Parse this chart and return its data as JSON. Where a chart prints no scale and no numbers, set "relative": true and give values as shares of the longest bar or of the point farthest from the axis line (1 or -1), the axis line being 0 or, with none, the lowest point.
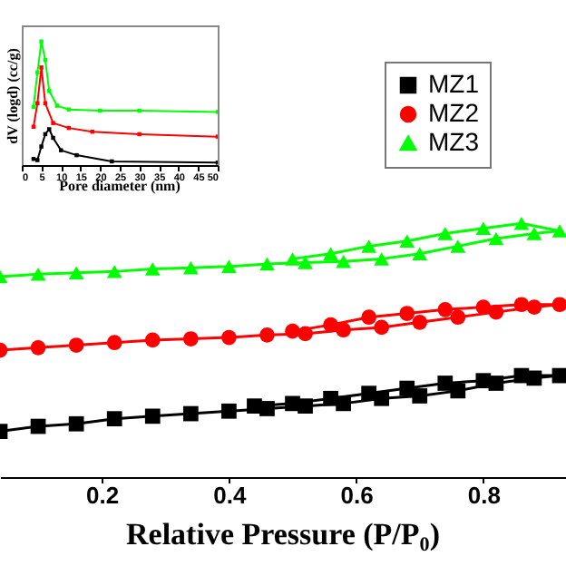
{
  "chart_data": [
    {
      "type": "line",
      "xlabel": "Relative Pressure (P/P$_{0}$)",
      "relative": true,
      "xlim": [
        0.04,
        0.93
      ],
      "xticks": [
        0.2,
        0.4,
        0.6,
        0.8
      ],
      "tick_labels": "x",
      "legend": "top right",
      "line_style": "solid",
      "series": [
        {
          "name": "MZ1",
          "color": "#000000",
          "marker": "square",
          "x": [
            0.04,
            0.1,
            0.16,
            0.22,
            0.28,
            0.34,
            0.4,
            0.46,
            0.52,
            0.58,
            0.64,
            0.7,
            0.76,
            0.82,
            0.88,
            0.92,
            0.86,
            0.8,
            0.74,
            0.68,
            0.62,
            0.56,
            0.5,
            0.44
          ],
          "values": [
            0.18,
            0.2,
            0.21,
            0.23,
            0.24,
            0.25,
            0.26,
            0.27,
            0.28,
            0.29,
            0.31,
            0.32,
            0.34,
            0.37,
            0.39,
            0.4,
            0.4,
            0.38,
            0.37,
            0.35,
            0.33,
            0.31,
            0.29,
            0.28
          ]
        },
        {
          "name": "MZ2",
          "color": "#ff0000",
          "marker": "circle",
          "x": [
            0.04,
            0.1,
            0.16,
            0.22,
            0.28,
            0.34,
            0.4,
            0.46,
            0.52,
            0.58,
            0.64,
            0.7,
            0.76,
            0.82,
            0.88,
            0.92,
            0.86,
            0.8,
            0.74,
            0.68,
            0.62,
            0.56,
            0.5
          ],
          "values": [
            0.5,
            0.51,
            0.52,
            0.53,
            0.54,
            0.545,
            0.55,
            0.56,
            0.565,
            0.58,
            0.59,
            0.61,
            0.63,
            0.65,
            0.67,
            0.68,
            0.68,
            0.67,
            0.66,
            0.645,
            0.63,
            0.6,
            0.575
          ]
        },
        {
          "name": "MZ3",
          "color": "#00ff00",
          "marker": "triangle",
          "x": [
            0.04,
            0.1,
            0.16,
            0.22,
            0.28,
            0.34,
            0.4,
            0.46,
            0.52,
            0.58,
            0.64,
            0.7,
            0.76,
            0.82,
            0.88,
            0.92,
            0.86,
            0.8,
            0.74,
            0.68,
            0.62,
            0.56,
            0.5
          ],
          "values": [
            0.79,
            0.8,
            0.805,
            0.81,
            0.82,
            0.825,
            0.83,
            0.84,
            0.845,
            0.85,
            0.86,
            0.88,
            0.91,
            0.94,
            0.96,
            0.97,
            1.0,
            0.98,
            0.96,
            0.93,
            0.91,
            0.88,
            0.86
          ]
        }
      ]
    },
    {
      "type": "line",
      "xlabel": "Pore diameter (nm)",
      "ylabel": "dV (logd) (cc/g)",
      "relative": true,
      "xlim": [
        0,
        50
      ],
      "xticks": [
        0,
        5,
        10,
        15,
        20,
        25,
        30,
        35,
        40,
        45,
        50
      ],
      "tick_labels": "x",
      "line_style": "solid",
      "series": [
        {
          "color": "#000000",
          "marker": "square",
          "x": [
            3,
            4,
            5,
            6,
            7,
            8,
            10,
            14,
            23,
            50
          ],
          "values": [
            0.05,
            0.04,
            0.15,
            0.25,
            0.29,
            0.22,
            0.12,
            0.08,
            0.03,
            0.02
          ]
        },
        {
          "color": "#ff0000",
          "marker": "square",
          "x": [
            3,
            4,
            5,
            6,
            8,
            12,
            18,
            30,
            50
          ],
          "values": [
            0.31,
            0.5,
            0.79,
            0.5,
            0.34,
            0.3,
            0.27,
            0.25,
            0.23
          ]
        },
        {
          "color": "#00ff00",
          "marker": "square",
          "x": [
            3,
            4,
            5,
            6,
            7,
            9,
            12,
            20,
            30,
            50
          ],
          "values": [
            0.47,
            0.75,
            1.0,
            0.85,
            0.6,
            0.48,
            0.45,
            0.44,
            0.44,
            0.43
          ]
        }
      ]
    }
  ]
}
